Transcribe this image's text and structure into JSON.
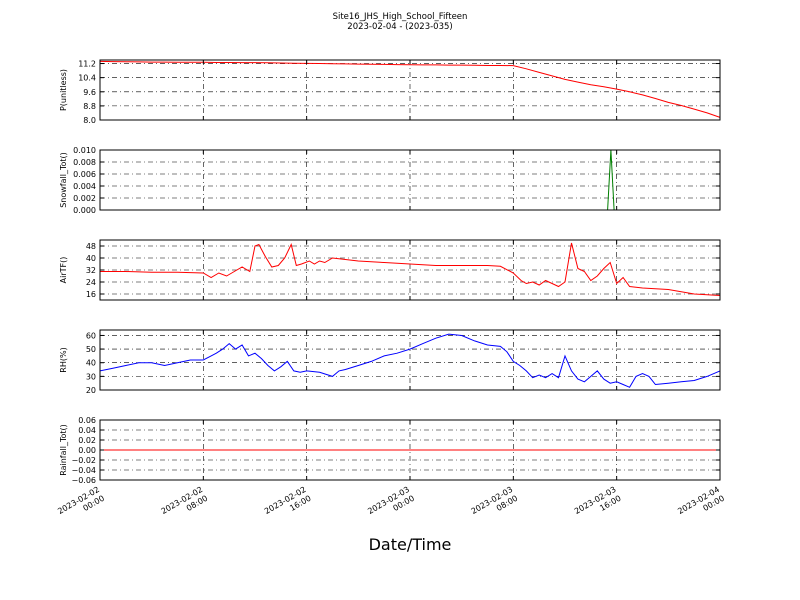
{
  "chart_data": {
    "type": "line",
    "title": "Site16_JHS_High_School_Fifteen",
    "subtitle": "2023-02-04 - (2023-035)",
    "xlabel": "Date/Time",
    "x_ticks": [
      {
        "value": 0,
        "lines": [
          "2023-02-02",
          "00:00"
        ]
      },
      {
        "value": 8,
        "lines": [
          "2023-02-02",
          "08:00"
        ]
      },
      {
        "value": 16,
        "lines": [
          "2023-02-02",
          "16:00"
        ]
      },
      {
        "value": 24,
        "lines": [
          "2023-02-03",
          "00:00"
        ]
      },
      {
        "value": 32,
        "lines": [
          "2023-02-03",
          "08:00"
        ]
      },
      {
        "value": 40,
        "lines": [
          "2023-02-03",
          "16:00"
        ]
      },
      {
        "value": 48,
        "lines": [
          "2023-02-04",
          "00:00"
        ]
      }
    ],
    "xlim": [
      0,
      48
    ],
    "grid": true,
    "panels": [
      {
        "ylabel": "P(unitless)",
        "ylim": [
          8.0,
          11.4
        ],
        "yticks": [
          8.0,
          8.8,
          9.6,
          10.4,
          11.2
        ],
        "ytick_labels": [
          "8.0",
          "8.8",
          "9.6",
          "10.4",
          "11.2"
        ],
        "color": "#ff0000",
        "x": [
          0,
          1,
          2,
          3,
          4,
          5,
          6,
          7,
          8,
          9,
          10,
          11,
          12,
          13,
          14,
          15,
          16,
          17,
          18,
          19,
          20,
          21,
          22,
          23,
          24,
          25,
          26,
          27,
          28,
          29,
          30,
          31,
          32,
          33,
          34,
          35,
          36,
          37,
          38,
          39,
          40,
          41,
          42,
          43,
          44,
          45,
          46,
          47,
          48
        ],
        "values": [
          11.32,
          11.31,
          11.3,
          11.29,
          11.28,
          11.28,
          11.27,
          11.27,
          11.27,
          11.26,
          11.26,
          11.25,
          11.25,
          11.24,
          11.23,
          11.22,
          11.21,
          11.2,
          11.19,
          11.18,
          11.17,
          11.16,
          11.15,
          11.14,
          11.13,
          11.12,
          11.12,
          11.11,
          11.11,
          11.1,
          11.09,
          11.09,
          11.08,
          10.9,
          10.7,
          10.5,
          10.3,
          10.15,
          10.0,
          9.88,
          9.75,
          9.6,
          9.42,
          9.22,
          9.0,
          8.82,
          8.62,
          8.4,
          8.15
        ]
      },
      {
        "ylabel": "Snowfall_Tot()",
        "ylim": [
          0.0,
          0.01
        ],
        "yticks": [
          0.0,
          0.002,
          0.004,
          0.006,
          0.008,
          0.01
        ],
        "ytick_labels": [
          "0.000",
          "0.002",
          "0.004",
          "0.006",
          "0.008",
          "0.010"
        ],
        "color": "#007f00",
        "x": [
          0,
          39.3,
          39.55,
          39.8,
          48
        ],
        "values": [
          0,
          0,
          0.01,
          0,
          0
        ]
      },
      {
        "ylabel": "AirTF()",
        "ylim": [
          12,
          52
        ],
        "yticks": [
          16,
          24,
          32,
          40,
          48
        ],
        "ytick_labels": [
          "16",
          "24",
          "32",
          "40",
          "48"
        ],
        "color": "#ff0000",
        "x": [
          0,
          2,
          4,
          6,
          8,
          8.6,
          9.2,
          9.8,
          10.4,
          11,
          11.6,
          12,
          12.3,
          12.8,
          13.3,
          13.8,
          14.3,
          14.8,
          15.2,
          15.6,
          16.2,
          16.6,
          17,
          17.4,
          18,
          19,
          20,
          22,
          24,
          26,
          28,
          30,
          31,
          32,
          32.6,
          33,
          33.5,
          34,
          34.5,
          35,
          35.5,
          36,
          36.5,
          37,
          37.5,
          38,
          38.5,
          39,
          39.5,
          40,
          40.5,
          41,
          42,
          44,
          46,
          48
        ],
        "values": [
          31,
          31,
          30.5,
          30.5,
          30,
          27,
          30,
          28,
          31,
          34,
          31,
          48,
          49,
          41,
          34,
          35,
          40,
          49,
          35,
          36,
          38,
          36,
          38,
          37,
          40,
          39,
          38,
          37,
          36,
          35,
          35,
          35,
          34.5,
          30,
          25,
          23,
          24,
          22,
          25,
          23,
          21,
          24,
          50,
          33,
          31,
          25,
          28,
          33,
          37,
          23,
          27,
          21,
          20,
          19,
          16,
          15
        ]
      },
      {
        "ylabel": "RH(%)",
        "ylim": [
          20,
          64
        ],
        "yticks": [
          20,
          30,
          40,
          50,
          60
        ],
        "ytick_labels": [
          "20",
          "30",
          "40",
          "50",
          "60"
        ],
        "color": "#0000ff",
        "x": [
          0,
          1,
          2,
          3,
          4,
          5,
          6,
          7,
          8,
          8.6,
          9,
          9.5,
          10,
          10.5,
          11,
          11.5,
          12,
          12.5,
          13,
          13.5,
          14,
          14.5,
          15,
          15.5,
          16,
          17,
          18,
          18.5,
          19,
          20,
          21,
          22,
          23,
          24,
          25,
          26,
          27,
          28,
          29,
          30,
          31,
          31.5,
          32,
          32.5,
          33,
          33.5,
          34,
          34.5,
          35,
          35.5,
          36,
          36.5,
          37,
          37.5,
          38,
          38.5,
          39,
          39.5,
          40,
          40.5,
          41,
          41.5,
          42,
          42.5,
          43,
          44,
          45,
          46,
          47,
          48
        ],
        "values": [
          34,
          36,
          38,
          40,
          40,
          38,
          40,
          42,
          42,
          45,
          47,
          50,
          54,
          50,
          53,
          45,
          47,
          43,
          38,
          34,
          37,
          41,
          34,
          33,
          34,
          33,
          30,
          34,
          35,
          38,
          41,
          45,
          47,
          50,
          54,
          58,
          61,
          60,
          56,
          53,
          52,
          48,
          41,
          38,
          34,
          29,
          31,
          29,
          32,
          29,
          45,
          34,
          28,
          26,
          30,
          34,
          28,
          25,
          26,
          24,
          22,
          30,
          32,
          30,
          24,
          25,
          26,
          27,
          30,
          34
        ]
      },
      {
        "ylabel": "Rainfall_Tot()",
        "ylim": [
          -0.06,
          0.06
        ],
        "yticks": [
          -0.06,
          -0.04,
          -0.02,
          0.0,
          0.02,
          0.04,
          0.06
        ],
        "ytick_labels": [
          "−0.06",
          "−0.04",
          "−0.02",
          "0.00",
          "0.02",
          "0.04",
          "0.06"
        ],
        "color": "#ff0000",
        "x": [
          0,
          48
        ],
        "values": [
          0,
          0
        ]
      }
    ]
  }
}
